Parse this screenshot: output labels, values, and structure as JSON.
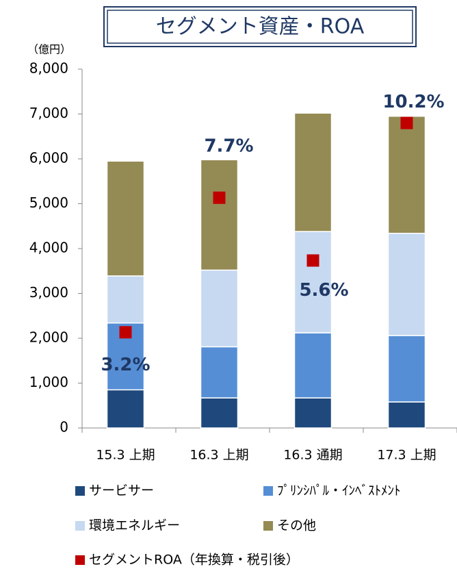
{
  "chart_data": {
    "type": "bar",
    "stacked": true,
    "title": "セグメント資産・ROA",
    "y_label": "（億円）",
    "categories": [
      "15.3 上期",
      "16.3 上期",
      "16.3 通期",
      "17.3 上期"
    ],
    "series": [
      {
        "name": "サービサー",
        "color": "#1f497d",
        "values": [
          850,
          670,
          670,
          580
        ]
      },
      {
        "name": "ﾌﾟﾘﾝｼﾊﾟﾙ・ｲﾝﾍﾞｽﾄﾒﾝﾄ",
        "color": "#558ed5",
        "values": [
          1490,
          1140,
          1450,
          1480
        ]
      },
      {
        "name": "環境エネルギー",
        "color": "#c6d9f1",
        "values": [
          1050,
          1710,
          2260,
          2280
        ]
      },
      {
        "name": "その他",
        "color": "#948a54",
        "values": [
          2560,
          2460,
          2640,
          2610
        ]
      },
      {
        "name": "セグメントROA（年換算・税引後）",
        "color": "#c00000",
        "type": "scatter",
        "axis": "y2",
        "values": [
          3.2,
          7.7,
          5.6,
          10.2
        ],
        "value_labels": [
          "3.2%",
          "7.7%",
          "5.6%",
          "10.2%"
        ]
      }
    ],
    "ylim": [
      0,
      8000
    ],
    "yticks": [
      0,
      {
        "value": 1000,
        "label": "1,000"
      },
      {
        "value": 2000,
        "label": "2,000"
      },
      {
        "value": 3000,
        "label": "3,000"
      },
      {
        "value": 4000,
        "label": "4,000"
      },
      {
        "value": 5000,
        "label": "5,000"
      },
      {
        "value": 6000,
        "label": "6,000"
      },
      {
        "value": 7000,
        "label": "7,000"
      },
      {
        "value": 8000,
        "label": "8,000"
      }
    ],
    "y2lim": [
      0,
      12
    ],
    "legend": "bottom"
  }
}
